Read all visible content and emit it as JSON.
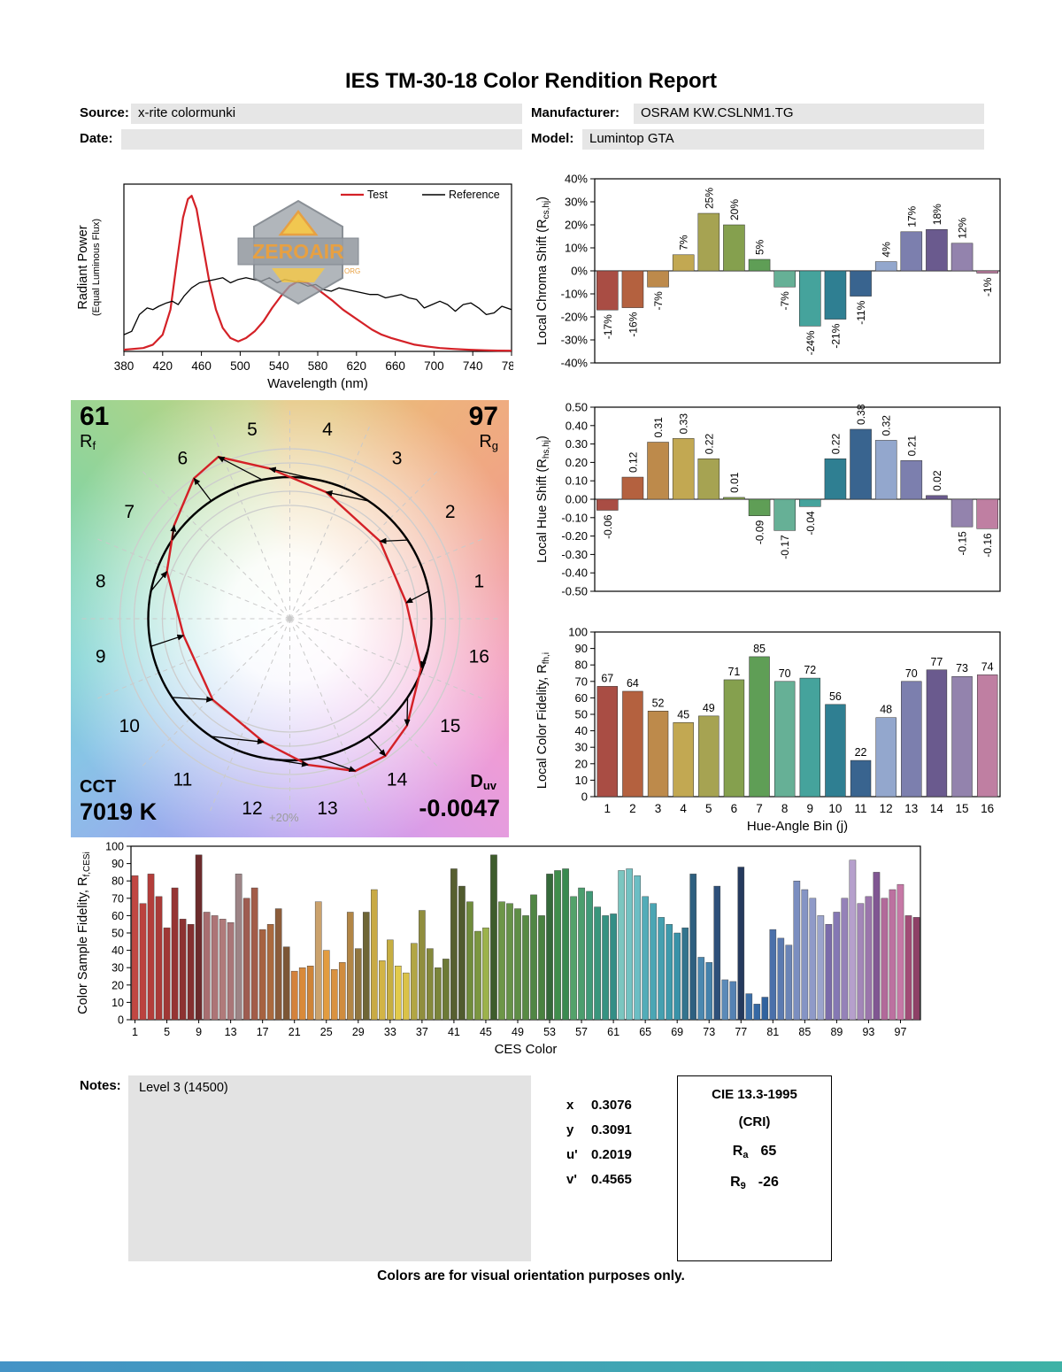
{
  "report": {
    "title": "IES TM-30-18 Color Rendition Report",
    "fields": {
      "source_label": "Source:",
      "source": "x-rite colormunki",
      "manufacturer_label": "Manufacturer:",
      "manufacturer": "OSRAM KW.CSLNM1.TG",
      "date_label": "Date:",
      "date": "",
      "model_label": "Model:",
      "model": "Lumintop GTA"
    },
    "notes": {
      "label": "Notes:",
      "text": "Level 3 (14500)"
    },
    "chromaticity": [
      {
        "label": "x",
        "value": "0.3076"
      },
      {
        "label": "y",
        "value": "0.3091"
      },
      {
        "label": "u'",
        "value": "0.2019"
      },
      {
        "label": "v'",
        "value": "0.4565"
      }
    ],
    "cri_box": {
      "title": "CIE 13.3-1995",
      "subtitle": "(CRI)",
      "ra_base": "R",
      "ra_sub": "a",
      "ra_value": "65",
      "r9_base": "R",
      "r9_sub": "9",
      "r9_value": "-26"
    },
    "footer": "Colors are for visual orientation purposes only."
  },
  "watermark": {
    "text": "ZEROAIR",
    "suffix": ".ORG"
  },
  "axis_titles": {
    "spd_y1": "Radiant Power",
    "spd_y2": "(Equal Luminous Flux)",
    "chroma_pre": "Local Chroma Shift (R",
    "chroma_sub": "cs,hj",
    "chroma_post": ")",
    "hue_pre": "Local Hue Shift (R",
    "hue_sub": "hs,hj",
    "hue_post": ")",
    "fid_pre": "Local Color Fidelity, R",
    "fid_sub": "fh,i",
    "fid_post": "",
    "ces_pre": "Color Sample Fidelity, R",
    "ces_sub": "f,CESi",
    "ces_post": ""
  },
  "cvg": {
    "rf_value": "61",
    "rf_base": "R",
    "rf_sub": "f",
    "rg_value": "97",
    "rg_base": "R",
    "rg_sub": "g",
    "cct_label": "CCT",
    "cct_value": "7019 K",
    "duv_base": "D",
    "duv_sub": "uv",
    "duv_value": "-0.0047",
    "ring_label": "+20%",
    "bin_numbers": [
      1,
      2,
      3,
      4,
      5,
      6,
      7,
      8,
      9,
      10,
      11,
      12,
      13,
      14,
      15,
      16
    ],
    "wheel_colors": [
      "#f09898",
      "#f0a584",
      "#eeb37c",
      "#e4c47c",
      "#c8d288",
      "#a8d48c",
      "#8ed49c",
      "#80d4b8",
      "#7cd2d2",
      "#88c4e6",
      "#96aeec",
      "#a8a0ee",
      "#c29cee",
      "#dc9ce6",
      "#ee9cd6",
      "#f298b8"
    ],
    "reference_color": "#000000",
    "test_color": "#d42127"
  },
  "bin_colors": [
    "#a94d44",
    "#b4613f",
    "#bd8a4b",
    "#c2a852",
    "#a6a352",
    "#85a04e",
    "#5f9e56",
    "#66b096",
    "#45a39c",
    "#2f7f92",
    "#39648f",
    "#93a7cd",
    "#7c7fae",
    "#6a5a8e",
    "#9383ad",
    "#bf7fa2"
  ],
  "chart_data": [
    {
      "id": "spd",
      "type": "line",
      "title": "",
      "xlabel": "Wavelength (nm)",
      "ylabel": "Radiant Power (Equal Luminous Flux)",
      "xlim": [
        380,
        780
      ],
      "ylim": [
        0,
        1
      ],
      "xticks": [
        380,
        420,
        460,
        500,
        540,
        580,
        620,
        660,
        700,
        740,
        780
      ],
      "legend": [
        {
          "name": "Test",
          "color": "#d42127"
        },
        {
          "name": "Reference",
          "color": "#000000"
        }
      ],
      "series": [
        {
          "name": "Test",
          "color": "#d42127",
          "width": 2.2,
          "points": [
            [
              380,
              0.01
            ],
            [
              400,
              0.02
            ],
            [
              410,
              0.04
            ],
            [
              420,
              0.1
            ],
            [
              428,
              0.25
            ],
            [
              435,
              0.55
            ],
            [
              441,
              0.8
            ],
            [
              446,
              0.91
            ],
            [
              450,
              0.93
            ],
            [
              455,
              0.85
            ],
            [
              461,
              0.65
            ],
            [
              468,
              0.42
            ],
            [
              475,
              0.25
            ],
            [
              482,
              0.14
            ],
            [
              490,
              0.08
            ],
            [
              498,
              0.06
            ],
            [
              506,
              0.08
            ],
            [
              515,
              0.12
            ],
            [
              524,
              0.18
            ],
            [
              533,
              0.26
            ],
            [
              542,
              0.33
            ],
            [
              551,
              0.39
            ],
            [
              560,
              0.42
            ],
            [
              569,
              0.41
            ],
            [
              578,
              0.38
            ],
            [
              587,
              0.34
            ],
            [
              596,
              0.3
            ],
            [
              606,
              0.25
            ],
            [
              616,
              0.21
            ],
            [
              626,
              0.17
            ],
            [
              636,
              0.13
            ],
            [
              646,
              0.1
            ],
            [
              656,
              0.08
            ],
            [
              668,
              0.06
            ],
            [
              680,
              0.04
            ],
            [
              692,
              0.03
            ],
            [
              706,
              0.02
            ],
            [
              720,
              0.015
            ],
            [
              736,
              0.01
            ],
            [
              752,
              0.007
            ],
            [
              766,
              0.005
            ],
            [
              780,
              0.004
            ]
          ]
        },
        {
          "name": "Reference",
          "color": "#000000",
          "width": 1.3,
          "points": [
            [
              380,
              0.1
            ],
            [
              388,
              0.12
            ],
            [
              396,
              0.22
            ],
            [
              404,
              0.26
            ],
            [
              410,
              0.25
            ],
            [
              416,
              0.27
            ],
            [
              424,
              0.29
            ],
            [
              430,
              0.3
            ],
            [
              436,
              0.28
            ],
            [
              442,
              0.33
            ],
            [
              450,
              0.38
            ],
            [
              458,
              0.41
            ],
            [
              466,
              0.42
            ],
            [
              474,
              0.43
            ],
            [
              482,
              0.44
            ],
            [
              490,
              0.41
            ],
            [
              498,
              0.43
            ],
            [
              506,
              0.44
            ],
            [
              514,
              0.43
            ],
            [
              522,
              0.42
            ],
            [
              530,
              0.44
            ],
            [
              538,
              0.41
            ],
            [
              546,
              0.43
            ],
            [
              554,
              0.42
            ],
            [
              562,
              0.41
            ],
            [
              570,
              0.39
            ],
            [
              578,
              0.4
            ],
            [
              586,
              0.37
            ],
            [
              594,
              0.36
            ],
            [
              602,
              0.38
            ],
            [
              610,
              0.37
            ],
            [
              618,
              0.36
            ],
            [
              626,
              0.35
            ],
            [
              634,
              0.34
            ],
            [
              642,
              0.34
            ],
            [
              650,
              0.32
            ],
            [
              658,
              0.33
            ],
            [
              666,
              0.34
            ],
            [
              674,
              0.32
            ],
            [
              682,
              0.31
            ],
            [
              690,
              0.26
            ],
            [
              698,
              0.28
            ],
            [
              706,
              0.3
            ],
            [
              714,
              0.28
            ],
            [
              722,
              0.24
            ],
            [
              730,
              0.28
            ],
            [
              738,
              0.29
            ],
            [
              746,
              0.26
            ],
            [
              754,
              0.22
            ],
            [
              762,
              0.23
            ],
            [
              770,
              0.27
            ],
            [
              780,
              0.25
            ]
          ]
        }
      ]
    },
    {
      "id": "chroma_shift",
      "type": "bar",
      "categories": [
        1,
        2,
        3,
        4,
        5,
        6,
        7,
        8,
        9,
        10,
        11,
        12,
        13,
        14,
        15,
        16
      ],
      "values": [
        -17,
        -16,
        -7,
        7,
        25,
        20,
        5,
        -7,
        -24,
        -21,
        -11,
        4,
        17,
        18,
        12,
        -1
      ],
      "value_labels": [
        "-17%",
        "-16%",
        "-7%",
        "7%",
        "25%",
        "20%",
        "5%",
        "-7%",
        "-24%",
        "-21%",
        "-11%",
        "4%",
        "17%",
        "18%",
        "12%",
        "-1%"
      ],
      "ylim": [
        -40,
        40
      ],
      "ytick_values": [
        40,
        30,
        20,
        10,
        0,
        -10,
        -20,
        -30,
        -40
      ],
      "ytick_labels": [
        "40%",
        "30%",
        "20%",
        "10%",
        "0%",
        "-10%",
        "-20%",
        "-30%",
        "-40%"
      ]
    },
    {
      "id": "hue_shift",
      "type": "bar",
      "categories": [
        1,
        2,
        3,
        4,
        5,
        6,
        7,
        8,
        9,
        10,
        11,
        12,
        13,
        14,
        15,
        16
      ],
      "values": [
        -0.06,
        0.12,
        0.31,
        0.33,
        0.22,
        0.01,
        -0.09,
        -0.17,
        -0.04,
        0.22,
        0.38,
        0.32,
        0.21,
        0.02,
        -0.15,
        -0.16
      ],
      "value_labels": [
        "-0.06",
        "0.12",
        "0.31",
        "0.33",
        "0.22",
        "0.01",
        "-0.09",
        "-0.17",
        "-0.04",
        "0.22",
        "0.38",
        "0.32",
        "0.21",
        "0.02",
        "-0.15",
        "-0.16"
      ],
      "ylim": [
        -0.5,
        0.5
      ],
      "ytick_values": [
        0.5,
        0.4,
        0.3,
        0.2,
        0.1,
        0,
        -0.1,
        -0.2,
        -0.3,
        -0.4,
        -0.5
      ],
      "ytick_labels": [
        "0.50",
        "0.40",
        "0.30",
        "0.20",
        "0.10",
        "0.00",
        "-0.10",
        "-0.20",
        "-0.30",
        "-0.40",
        "-0.50"
      ]
    },
    {
      "id": "fidelity",
      "type": "bar",
      "categories": [
        1,
        2,
        3,
        4,
        5,
        6,
        7,
        8,
        9,
        10,
        11,
        12,
        13,
        14,
        15,
        16
      ],
      "values": [
        67,
        64,
        52,
        45,
        49,
        71,
        85,
        70,
        72,
        56,
        22,
        48,
        70,
        77,
        73,
        74
      ],
      "value_labels": [
        "67",
        "64",
        "52",
        "45",
        "49",
        "71",
        "85",
        "70",
        "72",
        "56",
        "22",
        "48",
        "70",
        "77",
        "73",
        "74"
      ],
      "ylim": [
        0,
        100
      ],
      "ytick_values": [
        100,
        90,
        80,
        70,
        60,
        50,
        40,
        30,
        20,
        10,
        0
      ],
      "ytick_labels": [
        "100",
        "90",
        "80",
        "70",
        "60",
        "50",
        "40",
        "30",
        "20",
        "10",
        "0"
      ],
      "xtick_labels": [
        "1",
        "2",
        "3",
        "4",
        "5",
        "6",
        "7",
        "8",
        "9",
        "10",
        "11",
        "12",
        "13",
        "14",
        "15",
        "16"
      ],
      "xlabel": "Hue-Angle Bin (j)"
    },
    {
      "id": "ces",
      "type": "bar",
      "values": [
        83,
        67,
        84,
        71,
        53,
        76,
        58,
        55,
        95,
        62,
        60,
        58,
        56,
        84,
        70,
        76,
        52,
        55,
        64,
        42,
        28,
        30,
        31,
        68,
        40,
        29,
        33,
        62,
        41,
        62,
        75,
        34,
        46,
        31,
        27,
        44,
        63,
        41,
        30,
        35,
        87,
        77,
        68,
        51,
        53,
        95,
        68,
        67,
        64,
        60,
        72,
        60,
        84,
        86,
        87,
        71,
        76,
        74,
        65,
        60,
        61,
        86,
        87,
        83,
        71,
        67,
        59,
        55,
        50,
        53,
        84,
        36,
        33,
        77,
        23,
        22,
        88,
        15,
        9,
        13,
        52,
        47,
        43,
        80,
        75,
        70,
        60,
        55,
        62,
        70,
        92,
        67,
        71,
        85,
        70,
        75,
        78,
        60,
        59
      ],
      "colors": [
        "#c14742",
        "#bb423e",
        "#b33d3a",
        "#aa3a38",
        "#a03735",
        "#963433",
        "#8d3231",
        "#843030",
        "#6c2b2c",
        "#a86e70",
        "#ad7476",
        "#b07a7a",
        "#a97678",
        "#9d8486",
        "#9e5c50",
        "#a25c48",
        "#a66240",
        "#ab6a3e",
        "#8c5c3a",
        "#7c5636",
        "#d4823c",
        "#d98a3a",
        "#ce8438",
        "#cba26c",
        "#e29c40",
        "#da9240",
        "#d08c3e",
        "#b28646",
        "#91763f",
        "#6f6636",
        "#c9aa44",
        "#d2b446",
        "#c6ae42",
        "#e2ca4a",
        "#dac248",
        "#b2a644",
        "#908e3e",
        "#85893c",
        "#7b853a",
        "#6d7a36",
        "#575f30",
        "#505b2e",
        "#708c3c",
        "#7b9640",
        "#9cb24c",
        "#3e5c2c",
        "#6d9648",
        "#669248",
        "#5f8e46",
        "#588a44",
        "#508644",
        "#498240",
        "#356a3a",
        "#408e4c",
        "#398a50",
        "#53a26a",
        "#4b9e6e",
        "#409a78",
        "#39967c",
        "#369282",
        "#338e86",
        "#7bc6c0",
        "#73c2c2",
        "#6bbec4",
        "#53acb8",
        "#4ba6b4",
        "#45a0b0",
        "#3f9aac",
        "#3992a8",
        "#33748e",
        "#2e6080",
        "#4b88b0",
        "#4582ac",
        "#2e507a",
        "#5b8ab8",
        "#5582b4",
        "#253a5e",
        "#3b6ea8",
        "#3668a4",
        "#31629e",
        "#4b70aa",
        "#5b7ab0",
        "#6b84b6",
        "#7b8ec0",
        "#8594c4",
        "#8f9ac8",
        "#9ba4cc",
        "#7b6caa",
        "#8578b4",
        "#9582b8",
        "#b6a0cc",
        "#a386b8",
        "#9b76ac",
        "#805692",
        "#b26a9a",
        "#bc71a0",
        "#c678a6",
        "#a24c76",
        "#8e4066"
      ],
      "ylim": [
        0,
        100
      ],
      "ytick_values": [
        100,
        90,
        80,
        70,
        60,
        50,
        40,
        30,
        20,
        10,
        0
      ],
      "ytick_labels": [
        "100",
        "90",
        "80",
        "70",
        "60",
        "50",
        "40",
        "30",
        "20",
        "10",
        "0"
      ],
      "xtick_labels": [
        "1",
        "5",
        "9",
        "13",
        "17",
        "21",
        "25",
        "29",
        "33",
        "37",
        "41",
        "45",
        "49",
        "53",
        "57",
        "61",
        "65",
        "69",
        "73",
        "77",
        "81",
        "85",
        "89",
        "93",
        "97"
      ],
      "xtick_every": 4,
      "xlabel": "CES Color"
    }
  ]
}
